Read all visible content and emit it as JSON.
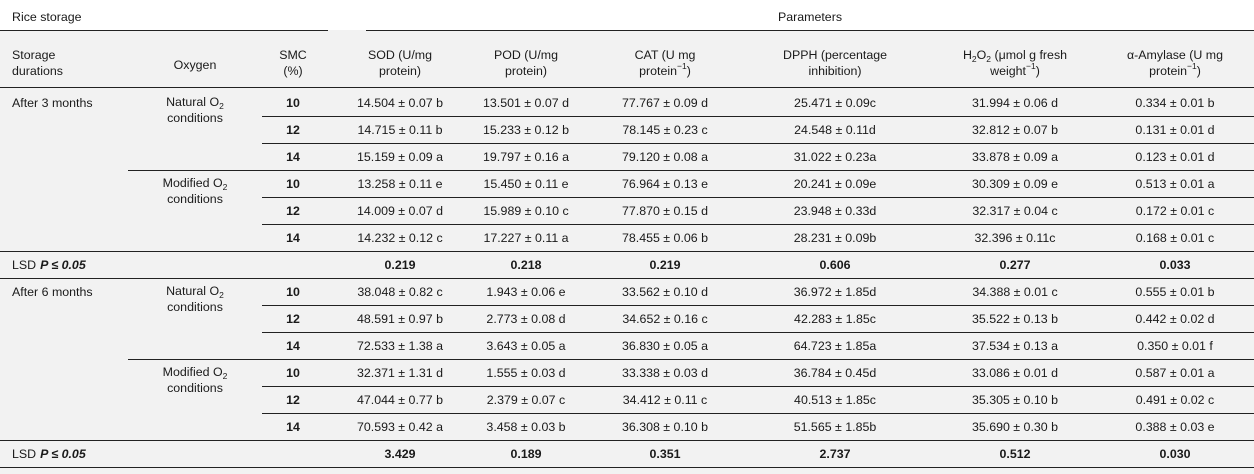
{
  "header": {
    "group_rice_storage": "Rice storage",
    "group_parameters": "Parameters",
    "col_storage_durations": [
      "Storage",
      "durations"
    ],
    "col_oxygen": "Oxygen",
    "col_smc": [
      "SMC",
      "(%)"
    ],
    "col_sod": [
      "SOD (U/mg",
      "protein)"
    ],
    "col_pod": [
      "POD (U/mg",
      "protein)"
    ],
    "col_cat": [
      "CAT (U mg",
      "protein",
      "−1",
      ")"
    ],
    "col_dpph": [
      "DPPH (percentage",
      "inhibition)"
    ],
    "col_h2o2": [
      "H",
      "2",
      "O",
      "2",
      " (μmol g fresh",
      "weight",
      "−1",
      ")"
    ],
    "col_amylase": [
      "α-Amylase (U mg",
      "protein",
      "−1",
      ")"
    ]
  },
  "groups": [
    {
      "duration": "After 3 months",
      "blocks": [
        {
          "oxygen": [
            "Natural O",
            "2",
            "conditions"
          ],
          "rows": [
            {
              "smc": "10",
              "sod": "14.504 ± 0.07 b",
              "pod": "13.501 ± 0.07 d",
              "cat": "77.767 ± 0.09 d",
              "dpph": "25.471 ± 0.09c",
              "h2o2": "31.994 ± 0.06 d",
              "amy": "0.334 ± 0.01 b"
            },
            {
              "smc": "12",
              "sod": "14.715 ± 0.11 b",
              "pod": "15.233 ± 0.12 b",
              "cat": "78.145 ± 0.23 c",
              "dpph": "24.548 ± 0.11d",
              "h2o2": "32.812 ± 0.07 b",
              "amy": "0.131 ± 0.01 d"
            },
            {
              "smc": "14",
              "sod": "15.159 ± 0.09 a",
              "pod": "19.797 ± 0.16 a",
              "cat": "79.120 ± 0.08 a",
              "dpph": "31.022 ± 0.23a",
              "h2o2": "33.878 ± 0.09 a",
              "amy": "0.123 ± 0.01 d"
            }
          ]
        },
        {
          "oxygen": [
            "Modified O",
            "2",
            "conditions"
          ],
          "rows": [
            {
              "smc": "10",
              "sod": "13.258 ± 0.11 e",
              "pod": "15.450 ± 0.11 e",
              "cat": "76.964 ± 0.13 e",
              "dpph": "20.241 ± 0.09e",
              "h2o2": "30.309 ± 0.09 e",
              "amy": "0.513 ± 0.01 a"
            },
            {
              "smc": "12",
              "sod": "14.009 ± 0.07 d",
              "pod": "15.989 ± 0.10 c",
              "cat": "77.870 ± 0.15 d",
              "dpph": "23.948 ± 0.33d",
              "h2o2": "32.317 ± 0.04 c",
              "amy": "0.172 ± 0.01 c"
            },
            {
              "smc": "14",
              "sod": "14.232 ± 0.12 c",
              "pod": "17.227 ± 0.11 a",
              "cat": "78.455 ± 0.06 b",
              "dpph": "28.231 ± 0.09b",
              "h2o2": "32.396 ± 0.11c",
              "amy": "0.168 ± 0.01 c"
            }
          ]
        }
      ],
      "lsd": {
        "label": "LSD",
        "p": "P ≤ 0.05",
        "sod": "0.219",
        "pod": "0.218",
        "cat": "0.219",
        "dpph": "0.606",
        "h2o2": "0.277",
        "amy": "0.033"
      }
    },
    {
      "duration": "After 6 months",
      "blocks": [
        {
          "oxygen": [
            "Natural O",
            "2",
            "conditions"
          ],
          "rows": [
            {
              "smc": "10",
              "sod": "38.048 ± 0.82 c",
              "pod": "1.943 ± 0.06 e",
              "cat": "33.562 ± 0.10 d",
              "dpph": "36.972 ± 1.85d",
              "h2o2": "34.388 ± 0.01 c",
              "amy": "0.555 ± 0.01 b"
            },
            {
              "smc": "12",
              "sod": "48.591 ± 0.97 b",
              "pod": "2.773 ± 0.08 d",
              "cat": "34.652 ± 0.16 c",
              "dpph": "42.283 ± 1.85c",
              "h2o2": "35.522 ± 0.13 b",
              "amy": "0.442 ± 0.02 d"
            },
            {
              "smc": "14",
              "sod": "72.533 ± 1.38 a",
              "pod": "3.643 ± 0.05 a",
              "cat": "36.830 ± 0.05 a",
              "dpph": "64.723 ± 1.85a",
              "h2o2": "37.534 ± 0.13 a",
              "amy": "0.350 ± 0.01 f"
            }
          ]
        },
        {
          "oxygen": [
            "Modified O",
            "2",
            "conditions"
          ],
          "rows": [
            {
              "smc": "10",
              "sod": "32.371 ± 1.31 d",
              "pod": "1.555 ± 0.03 d",
              "cat": "33.338 ± 0.03 d",
              "dpph": "36.784 ± 0.45d",
              "h2o2": "33.086 ± 0.01 d",
              "amy": "0.587 ± 0.01 a"
            },
            {
              "smc": "12",
              "sod": "47.044 ± 0.77 b",
              "pod": "2.379 ± 0.07 c",
              "cat": "34.412 ± 0.11 c",
              "dpph": "40.513 ± 1.85c",
              "h2o2": "35.305 ± 0.10 b",
              "amy": "0.491 ± 0.02 c"
            },
            {
              "smc": "14",
              "sod": "70.593 ± 0.42 a",
              "pod": "3.458 ± 0.03 b",
              "cat": "36.308 ± 0.10 b",
              "dpph": "51.565 ± 1.85b",
              "h2o2": "35.690 ± 0.30 b",
              "amy": "0.388 ± 0.03 e"
            }
          ]
        }
      ],
      "lsd": {
        "label": "LSD",
        "p": "P ≤ 0.05",
        "sod": "3.429",
        "pod": "0.189",
        "cat": "0.351",
        "dpph": "2.737",
        "h2o2": "0.512",
        "amy": "0.030"
      }
    }
  ]
}
